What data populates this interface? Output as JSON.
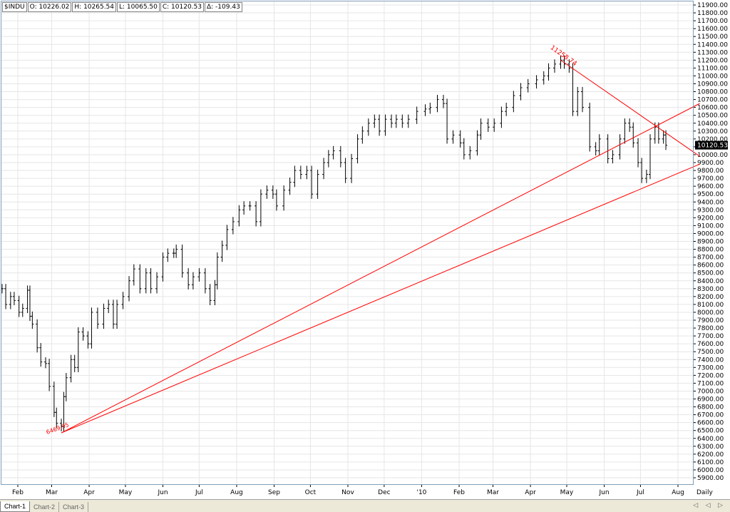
{
  "header": {
    "symbol": "$INDU",
    "open": "O: 10226.02",
    "high": "H: 10265.54",
    "low": "L: 10065.50",
    "close": "C: 10120.53",
    "change": "Δ: -109.43"
  },
  "chart_data": {
    "type": "ohlc",
    "title": "",
    "xlabel": "",
    "ylabel": "",
    "ylim": [
      5900,
      11900
    ],
    "y_ticks": [
      11900,
      11800,
      11700,
      11600,
      11500,
      11400,
      11300,
      11200,
      11100,
      11000,
      10900,
      10800,
      10700,
      10600,
      10500,
      10400,
      10300,
      10200,
      10100,
      10000,
      9900,
      9800,
      9700,
      9600,
      9500,
      9400,
      9300,
      9200,
      9100,
      9000,
      8900,
      8800,
      8700,
      8600,
      8500,
      8400,
      8300,
      8200,
      8100,
      8000,
      7900,
      7800,
      7700,
      7600,
      7500,
      7400,
      7300,
      7200,
      7100,
      7000,
      6900,
      6800,
      6700,
      6600,
      6500,
      6400,
      6300,
      6200,
      6100,
      6000,
      5900
    ],
    "y_tick_labels": [
      "11900.00",
      "11800.00",
      "11700.00",
      "11600.00",
      "11500.00",
      "11400.00",
      "11300.00",
      "11200.00",
      "11100.00",
      "11000.00",
      "10900.00",
      "10800.00",
      "10700.00",
      "10600.00",
      "10500.00",
      "10400.00",
      "10300.00",
      "10200.00",
      "10100.00",
      "10000.00",
      "9900.00",
      "9800.00",
      "9700.00",
      "9600.00",
      "9500.00",
      "9400.00",
      "9300.00",
      "9200.00",
      "9100.00",
      "9000.00",
      "8900.00",
      "8800.00",
      "8700.00",
      "8600.00",
      "8500.00",
      "8400.00",
      "8300.00",
      "8200.00",
      "8100.00",
      "8000.00",
      "7900.00",
      "7800.00",
      "7700.00",
      "7600.00",
      "7500.00",
      "7400.00",
      "7300.00",
      "7200.00",
      "7100.00",
      "7000.00",
      "6900.00",
      "6800.00",
      "6700.00",
      "6600.00",
      "6500.00",
      "6400.00",
      "6300.00",
      "6200.00",
      "6100.00",
      "6000.00",
      "5900.00"
    ],
    "x_labels": [
      {
        "label": "Feb",
        "date": "2009-02-01"
      },
      {
        "label": "Mar",
        "date": "2009-03-01"
      },
      {
        "label": "Apr",
        "date": "2009-04-01"
      },
      {
        "label": "May",
        "date": "2009-05-01"
      },
      {
        "label": "Jun",
        "date": "2009-06-01"
      },
      {
        "label": "Jul",
        "date": "2009-07-01"
      },
      {
        "label": "Aug",
        "date": "2009-08-01"
      },
      {
        "label": "Sep",
        "date": "2009-09-01"
      },
      {
        "label": "Oct",
        "date": "2009-10-01"
      },
      {
        "label": "Nov",
        "date": "2009-11-01"
      },
      {
        "label": "Dec",
        "date": "2009-12-01"
      },
      {
        "label": "'10",
        "date": "2010-01-01"
      },
      {
        "label": "Feb",
        "date": "2010-02-01"
      },
      {
        "label": "Mar",
        "date": "2010-03-01"
      },
      {
        "label": "Apr",
        "date": "2010-04-01"
      },
      {
        "label": "May",
        "date": "2010-05-01"
      },
      {
        "label": "Jun",
        "date": "2010-06-01"
      },
      {
        "label": "Jul",
        "date": "2010-07-01"
      },
      {
        "label": "Aug",
        "date": "2010-08-01"
      }
    ],
    "periodicity_label": "Daily",
    "last_price": "10120.53",
    "last_value": 10120.53,
    "grid": true,
    "annotations": [
      {
        "text": "6469.95",
        "date": "2009-03-09",
        "value": 6469.95
      },
      {
        "text": "11258.74",
        "date": "2010-04-26",
        "value": 11258.74
      }
    ],
    "trendlines": [
      {
        "from": {
          "date": "2009-03-09",
          "value": 6470
        },
        "to": {
          "date": "2010-08-19",
          "value": 10650
        }
      },
      {
        "from": {
          "date": "2009-03-09",
          "value": 6470
        },
        "to": {
          "date": "2010-08-19",
          "value": 9880
        }
      },
      {
        "from": {
          "date": "2010-04-26",
          "value": 11200
        },
        "to": {
          "date": "2010-08-19",
          "value": 9980
        }
      }
    ],
    "series": [
      {
        "date": "2009-01-19",
        "value": 8300
      },
      {
        "date": "2009-01-22",
        "value": 8100
      },
      {
        "date": "2009-01-26",
        "value": 8200
      },
      {
        "date": "2009-01-29",
        "value": 8150
      },
      {
        "date": "2009-02-02",
        "value": 8000
      },
      {
        "date": "2009-02-05",
        "value": 8050
      },
      {
        "date": "2009-02-09",
        "value": 8280
      },
      {
        "date": "2009-02-11",
        "value": 7950
      },
      {
        "date": "2009-02-13",
        "value": 7850
      },
      {
        "date": "2009-02-17",
        "value": 7550
      },
      {
        "date": "2009-02-20",
        "value": 7370
      },
      {
        "date": "2009-02-24",
        "value": 7350
      },
      {
        "date": "2009-02-27",
        "value": 7060
      },
      {
        "date": "2009-03-03",
        "value": 6730
      },
      {
        "date": "2009-03-05",
        "value": 6590
      },
      {
        "date": "2009-03-09",
        "value": 6550
      },
      {
        "date": "2009-03-11",
        "value": 6930
      },
      {
        "date": "2009-03-13",
        "value": 7170
      },
      {
        "date": "2009-03-17",
        "value": 7400
      },
      {
        "date": "2009-03-20",
        "value": 7300
      },
      {
        "date": "2009-03-23",
        "value": 7750
      },
      {
        "date": "2009-03-27",
        "value": 7700
      },
      {
        "date": "2009-03-31",
        "value": 7600
      },
      {
        "date": "2009-04-03",
        "value": 8000
      },
      {
        "date": "2009-04-08",
        "value": 7850
      },
      {
        "date": "2009-04-13",
        "value": 8050
      },
      {
        "date": "2009-04-17",
        "value": 8100
      },
      {
        "date": "2009-04-21",
        "value": 7850
      },
      {
        "date": "2009-04-24",
        "value": 8100
      },
      {
        "date": "2009-04-29",
        "value": 8200
      },
      {
        "date": "2009-05-04",
        "value": 8400
      },
      {
        "date": "2009-05-08",
        "value": 8550
      },
      {
        "date": "2009-05-13",
        "value": 8300
      },
      {
        "date": "2009-05-18",
        "value": 8500
      },
      {
        "date": "2009-05-22",
        "value": 8300
      },
      {
        "date": "2009-05-27",
        "value": 8450
      },
      {
        "date": "2009-06-01",
        "value": 8700
      },
      {
        "date": "2009-06-05",
        "value": 8750
      },
      {
        "date": "2009-06-10",
        "value": 8750
      },
      {
        "date": "2009-06-12",
        "value": 8800
      },
      {
        "date": "2009-06-17",
        "value": 8500
      },
      {
        "date": "2009-06-22",
        "value": 8350
      },
      {
        "date": "2009-06-26",
        "value": 8450
      },
      {
        "date": "2009-07-01",
        "value": 8500
      },
      {
        "date": "2009-07-06",
        "value": 8300
      },
      {
        "date": "2009-07-10",
        "value": 8150
      },
      {
        "date": "2009-07-14",
        "value": 8350
      },
      {
        "date": "2009-07-16",
        "value": 8700
      },
      {
        "date": "2009-07-20",
        "value": 8850
      },
      {
        "date": "2009-07-24",
        "value": 9050
      },
      {
        "date": "2009-07-29",
        "value": 9150
      },
      {
        "date": "2009-08-03",
        "value": 9300
      },
      {
        "date": "2009-08-07",
        "value": 9350
      },
      {
        "date": "2009-08-12",
        "value": 9350
      },
      {
        "date": "2009-08-17",
        "value": 9150
      },
      {
        "date": "2009-08-21",
        "value": 9500
      },
      {
        "date": "2009-08-26",
        "value": 9550
      },
      {
        "date": "2009-08-31",
        "value": 9500
      },
      {
        "date": "2009-09-03",
        "value": 9350
      },
      {
        "date": "2009-09-09",
        "value": 9550
      },
      {
        "date": "2009-09-14",
        "value": 9650
      },
      {
        "date": "2009-09-18",
        "value": 9800
      },
      {
        "date": "2009-09-23",
        "value": 9750
      },
      {
        "date": "2009-09-28",
        "value": 9800
      },
      {
        "date": "2009-10-02",
        "value": 9500
      },
      {
        "date": "2009-10-07",
        "value": 9750
      },
      {
        "date": "2009-10-12",
        "value": 9900
      },
      {
        "date": "2009-10-16",
        "value": 10000
      },
      {
        "date": "2009-10-20",
        "value": 10050
      },
      {
        "date": "2009-10-26",
        "value": 9900
      },
      {
        "date": "2009-10-30",
        "value": 9700
      },
      {
        "date": "2009-11-04",
        "value": 9950
      },
      {
        "date": "2009-11-09",
        "value": 10200
      },
      {
        "date": "2009-11-13",
        "value": 10300
      },
      {
        "date": "2009-11-18",
        "value": 10400
      },
      {
        "date": "2009-11-23",
        "value": 10450
      },
      {
        "date": "2009-11-27",
        "value": 10300
      },
      {
        "date": "2009-12-02",
        "value": 10450
      },
      {
        "date": "2009-12-07",
        "value": 10400
      },
      {
        "date": "2009-12-11",
        "value": 10450
      },
      {
        "date": "2009-12-16",
        "value": 10400
      },
      {
        "date": "2009-12-21",
        "value": 10450
      },
      {
        "date": "2009-12-28",
        "value": 10550
      },
      {
        "date": "2010-01-04",
        "value": 10580
      },
      {
        "date": "2010-01-08",
        "value": 10600
      },
      {
        "date": "2010-01-14",
        "value": 10700
      },
      {
        "date": "2010-01-19",
        "value": 10650
      },
      {
        "date": "2010-01-22",
        "value": 10200
      },
      {
        "date": "2010-01-27",
        "value": 10250
      },
      {
        "date": "2010-02-02",
        "value": 10150
      },
      {
        "date": "2010-02-05",
        "value": 10000
      },
      {
        "date": "2010-02-10",
        "value": 10050
      },
      {
        "date": "2010-02-16",
        "value": 10250
      },
      {
        "date": "2010-02-19",
        "value": 10400
      },
      {
        "date": "2010-02-25",
        "value": 10350
      },
      {
        "date": "2010-03-02",
        "value": 10400
      },
      {
        "date": "2010-03-08",
        "value": 10550
      },
      {
        "date": "2010-03-12",
        "value": 10600
      },
      {
        "date": "2010-03-18",
        "value": 10750
      },
      {
        "date": "2010-03-24",
        "value": 10850
      },
      {
        "date": "2010-03-30",
        "value": 10900
      },
      {
        "date": "2010-04-06",
        "value": 10950
      },
      {
        "date": "2010-04-12",
        "value": 11000
      },
      {
        "date": "2010-04-16",
        "value": 11100
      },
      {
        "date": "2010-04-21",
        "value": 11150
      },
      {
        "date": "2010-04-26",
        "value": 11200
      },
      {
        "date": "2010-04-29",
        "value": 11150
      },
      {
        "date": "2010-05-03",
        "value": 11100
      },
      {
        "date": "2010-05-06",
        "value": 10550
      },
      {
        "date": "2010-05-10",
        "value": 10800
      },
      {
        "date": "2010-05-14",
        "value": 10600
      },
      {
        "date": "2010-05-20",
        "value": 10100
      },
      {
        "date": "2010-05-25",
        "value": 10050
      },
      {
        "date": "2010-05-28",
        "value": 10200
      },
      {
        "date": "2010-06-04",
        "value": 9950
      },
      {
        "date": "2010-06-08",
        "value": 10000
      },
      {
        "date": "2010-06-14",
        "value": 10200
      },
      {
        "date": "2010-06-18",
        "value": 10400
      },
      {
        "date": "2010-06-22",
        "value": 10350
      },
      {
        "date": "2010-06-25",
        "value": 10150
      },
      {
        "date": "2010-06-29",
        "value": 9900
      },
      {
        "date": "2010-07-02",
        "value": 9700
      },
      {
        "date": "2010-07-06",
        "value": 9750
      },
      {
        "date": "2010-07-09",
        "value": 10200
      },
      {
        "date": "2010-07-13",
        "value": 10350
      },
      {
        "date": "2010-07-16",
        "value": 10200
      },
      {
        "date": "2010-07-20",
        "value": 10250
      },
      {
        "date": "2010-07-22",
        "value": 10120
      }
    ]
  },
  "tabs": [
    {
      "label": "Chart-1",
      "active": true
    },
    {
      "label": "Chart-2",
      "active": false
    },
    {
      "label": "Chart-3",
      "active": false
    }
  ],
  "tab_nav": "◁ ◁ ▷",
  "colors": {
    "bar": "#000000",
    "trendline": "#ff0000",
    "annotation": "#ff0000",
    "grid": "#e6e6e6",
    "last_price_bg": "#000000",
    "border": "#7f9db9"
  }
}
